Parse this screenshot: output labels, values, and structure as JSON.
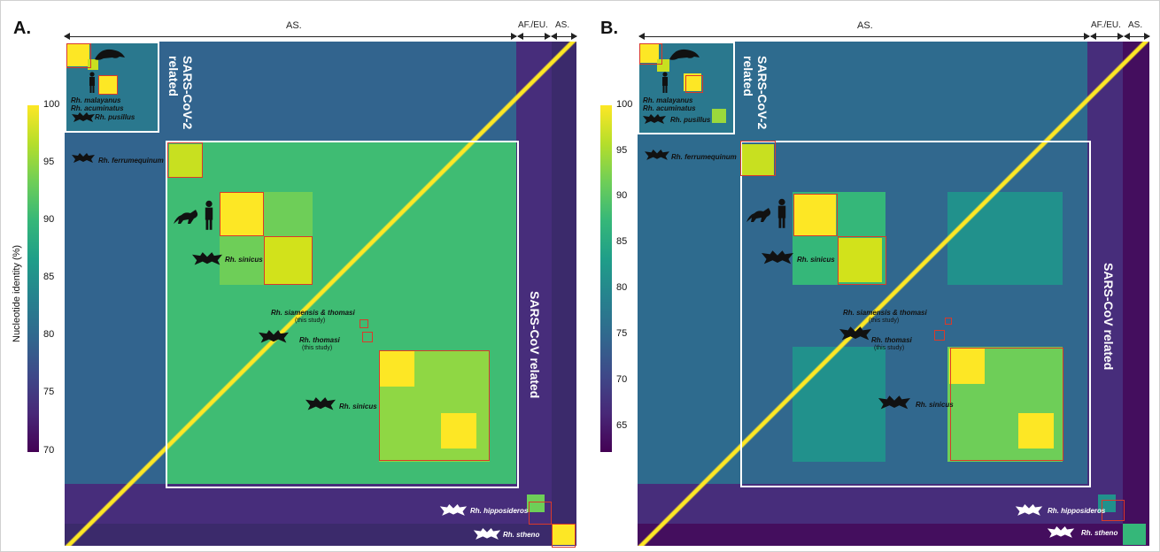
{
  "panels": [
    {
      "label": "A.",
      "regions": {
        "as_main": "AS.",
        "afeu": "AF./EU.",
        "as_right": "AS."
      },
      "colorbar": {
        "label": "Nucleotide identity (%)",
        "ticks": [
          "100",
          "95",
          "90",
          "85",
          "80",
          "75",
          "70"
        ]
      },
      "groups": {
        "sars2": "SARS-CoV-2\nrelated",
        "sars": "SARS-CoV related"
      },
      "species": {
        "malayanus": "Rh. malayanus",
        "acuminatus": "Rh. acuminatus",
        "pusillus": "Rh. pusillus",
        "ferrumequinum": "Rh. ferrumequinum",
        "sinicus1": "Rh. sinicus",
        "siamensis": "Rh. siamensis & thomasi",
        "thomasi": "Rh. thomasi",
        "sinicus2": "Rh. sinicus",
        "hipposideros": "Rh. hipposideros",
        "stheno": "Rh. stheno"
      },
      "notes": {
        "study1": "(this study)",
        "study2": "(this study)"
      }
    },
    {
      "label": "B.",
      "regions": {
        "as_main": "AS.",
        "afeu": "AF./EU.",
        "as_right": "AS."
      },
      "colorbar": {
        "label": "",
        "ticks": [
          "100",
          "95",
          "90",
          "85",
          "80",
          "75",
          "70",
          "65"
        ]
      },
      "groups": {
        "sars2": "SARS-CoV-2\nrelated",
        "sars": "SARS-CoV related"
      },
      "species": {
        "malayanus": "Rh. malayanus",
        "acuminatus": "Rh. acuminatus",
        "pusillus": "Rh. pusillus",
        "ferrumequinum": "Rh. ferrumequinum",
        "sinicus1": "Rh. sinicus",
        "siamensis": "Rh. siamensis & thomasi",
        "thomasi": "Rh. thomasi",
        "sinicus2": "Rh. sinicus",
        "hipposideros": "Rh. hipposideros",
        "stheno": "Rh. stheno"
      },
      "notes": {
        "study1": "(this study)",
        "study2": "(this study)"
      }
    }
  ],
  "colors": {
    "viridis_top": "#fde725",
    "viridis_mid": "#21918c",
    "viridis_bottom": "#440154",
    "box_white": "#ffffff",
    "box_red": "#d93a2b"
  },
  "icons": [
    "bat-icon",
    "pangolin-icon",
    "human-icon",
    "civet-icon",
    "horseshoe-bat-white-icon"
  ]
}
